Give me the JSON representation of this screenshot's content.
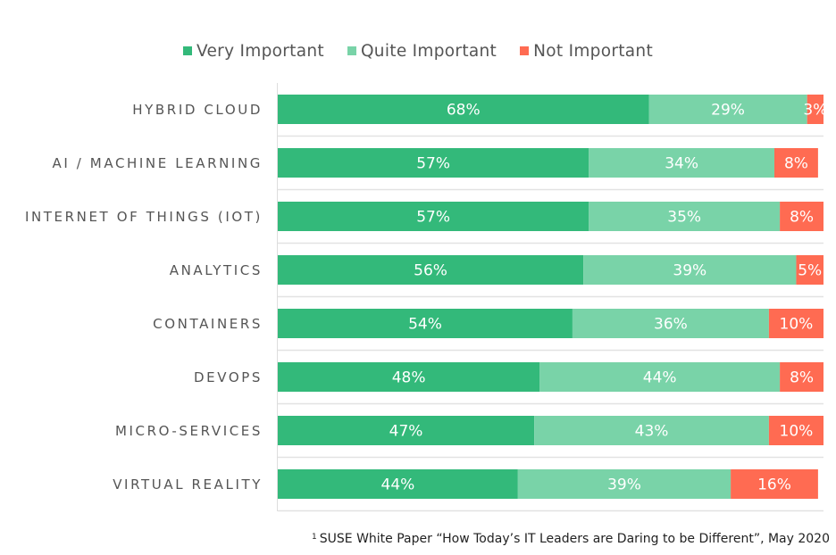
{
  "chart_data": {
    "type": "bar",
    "orientation": "horizontal",
    "stacked": true,
    "title": "",
    "xlabel": "",
    "ylabel": "",
    "xlim": [
      0,
      100
    ],
    "grid": true,
    "legend_position": "top-center",
    "categories": [
      "HYBRID CLOUD",
      "AI / MACHINE LEARNING",
      "INTERNET OF THINGS (IOT)",
      "ANALYTICS",
      "CONTAINERS",
      "DEVOPS",
      "MICRO-SERVICES",
      "VIRTUAL REALITY"
    ],
    "series": [
      {
        "name": "Very Important",
        "color": "#33b97a",
        "values": [
          68,
          57,
          57,
          56,
          54,
          48,
          47,
          44
        ]
      },
      {
        "name": "Quite Important",
        "color": "#79d3a8",
        "values": [
          29,
          34,
          35,
          39,
          36,
          44,
          43,
          39
        ]
      },
      {
        "name": "Not Important",
        "color": "#ff6b52",
        "values": [
          3,
          8,
          8,
          5,
          10,
          8,
          10,
          16
        ]
      }
    ],
    "value_suffix": "%"
  },
  "footnote": {
    "marker": "1",
    "text": "SUSE White Paper “How Today’s IT Leaders are Daring to be Different”, May 2020"
  }
}
